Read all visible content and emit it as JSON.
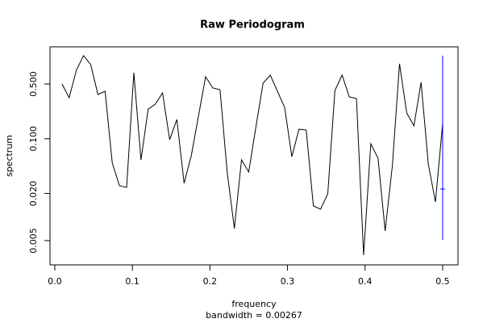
{
  "chart_data": {
    "type": "line",
    "title": "Raw Periodogram",
    "xlabel": "frequency",
    "subtitle": "bandwidth = 0.00267",
    "ylabel": "spectrum",
    "x": [
      0.0093,
      0.0185,
      0.0278,
      0.037,
      0.0463,
      0.0556,
      0.0648,
      0.0741,
      0.0833,
      0.0926,
      0.1019,
      0.1111,
      0.1204,
      0.1296,
      0.1389,
      0.1481,
      0.1574,
      0.1667,
      0.1759,
      0.1852,
      0.1944,
      0.2037,
      0.213,
      0.2222,
      0.2315,
      0.2407,
      0.25,
      0.2593,
      0.2685,
      0.2778,
      0.287,
      0.2963,
      0.3056,
      0.3148,
      0.3241,
      0.3333,
      0.3426,
      0.3519,
      0.3611,
      0.3704,
      0.3796,
      0.3889,
      0.3981,
      0.4074,
      0.4167,
      0.4259,
      0.4352,
      0.4444,
      0.4537,
      0.463,
      0.4722,
      0.4815,
      0.4907,
      0.5
    ],
    "values": [
      0.5,
      0.334,
      0.748,
      1.15,
      0.884,
      0.367,
      0.404,
      0.0489,
      0.0251,
      0.0239,
      0.697,
      0.0537,
      0.239,
      0.276,
      0.385,
      0.0973,
      0.176,
      0.027,
      0.0604,
      0.194,
      0.619,
      0.444,
      0.423,
      0.0376,
      0.00714,
      0.0537,
      0.0376,
      0.142,
      0.512,
      0.649,
      0.404,
      0.251,
      0.059,
      0.132,
      0.129,
      0.0139,
      0.0126,
      0.0198,
      0.413,
      0.649,
      0.342,
      0.326,
      0.00326,
      0.0863,
      0.0563,
      0.00665,
      0.0455,
      0.905,
      0.213,
      0.146,
      0.525,
      0.0477,
      0.0156,
      0.156
    ],
    "color": "#000000",
    "ci": {
      "x": 0.5,
      "center": 0.0228,
      "lower": 0.00512,
      "upper": 1.15,
      "color": "#0000ff"
    },
    "xlim": [
      -0.0062,
      0.5198
    ],
    "xticks": [
      {
        "value": 0,
        "label": "0.0"
      },
      0.1,
      0.2,
      0.3,
      0.4,
      0.5
    ],
    "ylim": [
      0.00245,
      1.49
    ],
    "ylog": true,
    "yticks": [
      {
        "value": 0.005,
        "label": "0.005"
      },
      {
        "value": 0.02,
        "label": "0.020"
      },
      {
        "value": 0.1,
        "label": "0.100"
      },
      {
        "value": 0.5,
        "label": "0.500"
      }
    ]
  }
}
